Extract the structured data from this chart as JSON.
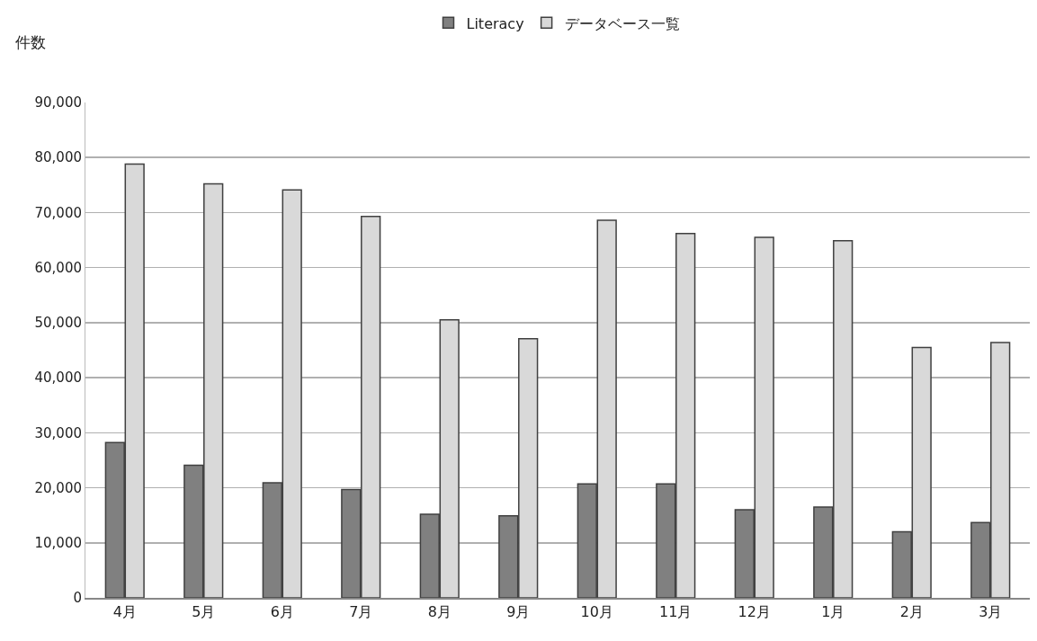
{
  "chart_data": {
    "type": "bar",
    "ylabel": "件数",
    "categories": [
      "4月",
      "5月",
      "6月",
      "7月",
      "8月",
      "9月",
      "10月",
      "11月",
      "12月",
      "1月",
      "2月",
      "3月"
    ],
    "series": [
      {
        "name": "Literacy",
        "color": "#808080",
        "values": [
          28200,
          24100,
          20900,
          19700,
          15200,
          14900,
          20700,
          20700,
          16000,
          16500,
          12000,
          13700
        ]
      },
      {
        "name": "データベース一覧",
        "color": "#d9d9d9",
        "values": [
          78800,
          75200,
          74100,
          69300,
          50500,
          47100,
          68600,
          66200,
          65500,
          64900,
          45500,
          46400
        ]
      }
    ],
    "ylim": [
      0,
      90000
    ],
    "yticks": [
      {
        "value": 0,
        "label": "0"
      },
      {
        "value": 10000,
        "label": "10,000"
      },
      {
        "value": 20000,
        "label": "20,000"
      },
      {
        "value": 30000,
        "label": "30,000"
      },
      {
        "value": 40000,
        "label": "40,000"
      },
      {
        "value": 50000,
        "label": "50,000"
      },
      {
        "value": 60000,
        "label": "60,000"
      },
      {
        "value": 70000,
        "label": "70,000"
      },
      {
        "value": 80000,
        "label": "80,000"
      },
      {
        "value": 90000,
        "label": "90,000"
      }
    ],
    "grid": "y",
    "legend": "top"
  }
}
